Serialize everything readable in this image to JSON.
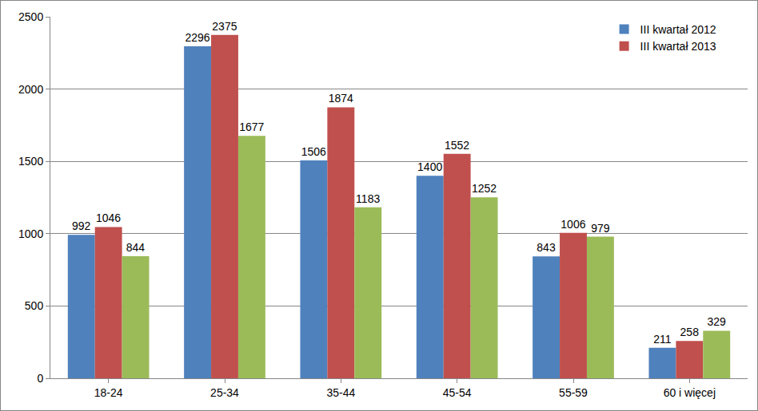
{
  "chart_data": {
    "type": "bar",
    "categories": [
      "18-24",
      "25-34",
      "35-44",
      "45-54",
      "55-59",
      "60 i więcej"
    ],
    "series": [
      {
        "name": "III kwartał 2012",
        "color": "#4f81bd",
        "values": [
          992,
          2296,
          1506,
          1400,
          843,
          211
        ]
      },
      {
        "name": "III kwartał 2013",
        "color": "#c0504d",
        "values": [
          1046,
          2375,
          1874,
          1552,
          1006,
          258
        ]
      },
      {
        "color": "#9bbb59",
        "values": [
          844,
          1677,
          1183,
          1252,
          979,
          329
        ]
      }
    ],
    "ylim": [
      0,
      2500
    ],
    "yticks": [
      0,
      500,
      1000,
      1500,
      2000,
      2500
    ],
    "grid": true,
    "data_labels": true,
    "legend": "top-right"
  }
}
